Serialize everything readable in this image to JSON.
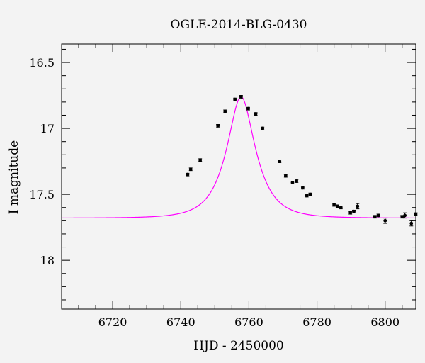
{
  "chart_data": {
    "type": "scatter",
    "title": "OGLE-2014-BLG-0430",
    "xlabel": "HJD - 2450000",
    "ylabel": "I magnitude",
    "xlim": [
      6705,
      6809
    ],
    "ylim": [
      18.37,
      16.36
    ],
    "y_inverted": true,
    "x_ticks": [
      6720,
      6740,
      6760,
      6780,
      6800
    ],
    "y_ticks": [
      16.5,
      17,
      17.5,
      18
    ],
    "y_tick_labels": [
      "16.5",
      "17",
      "17.5",
      "18"
    ],
    "grid": false,
    "colors": {
      "points": "#000000",
      "model": "#ff00ff",
      "background": "#f3f3f3"
    },
    "model": {
      "name": "",
      "t0": 6757.7,
      "peak_mag": 16.76,
      "baseline_mag": 17.68,
      "tE": 7.5
    },
    "series": [
      {
        "name": "",
        "points": [
          {
            "x": 6742.0,
            "y": 17.35,
            "err": 0.01
          },
          {
            "x": 6742.9,
            "y": 17.31,
            "err": 0.01
          },
          {
            "x": 6745.7,
            "y": 17.24,
            "err": 0.01
          },
          {
            "x": 6750.9,
            "y": 16.98,
            "err": 0.01
          },
          {
            "x": 6753.0,
            "y": 16.87,
            "err": 0.01
          },
          {
            "x": 6755.9,
            "y": 16.78,
            "err": 0.01
          },
          {
            "x": 6757.7,
            "y": 16.76,
            "err": 0.01
          },
          {
            "x": 6759.8,
            "y": 16.85,
            "err": 0.01
          },
          {
            "x": 6762.0,
            "y": 16.89,
            "err": 0.01
          },
          {
            "x": 6764.0,
            "y": 17.0,
            "err": 0.01
          },
          {
            "x": 6769.0,
            "y": 17.25,
            "err": 0.01
          },
          {
            "x": 6770.8,
            "y": 17.36,
            "err": 0.01
          },
          {
            "x": 6772.8,
            "y": 17.41,
            "err": 0.01
          },
          {
            "x": 6774.0,
            "y": 17.4,
            "err": 0.01
          },
          {
            "x": 6775.8,
            "y": 17.45,
            "err": 0.01
          },
          {
            "x": 6777.0,
            "y": 17.51,
            "err": 0.01
          },
          {
            "x": 6778.0,
            "y": 17.5,
            "err": 0.01
          },
          {
            "x": 6785.0,
            "y": 17.58,
            "err": 0.01
          },
          {
            "x": 6786.0,
            "y": 17.59,
            "err": 0.01
          },
          {
            "x": 6787.0,
            "y": 17.6,
            "err": 0.01
          },
          {
            "x": 6789.8,
            "y": 17.64,
            "err": 0.01
          },
          {
            "x": 6790.8,
            "y": 17.63,
            "err": 0.01
          },
          {
            "x": 6791.9,
            "y": 17.59,
            "err": 0.02
          },
          {
            "x": 6797.0,
            "y": 17.67,
            "err": 0.01
          },
          {
            "x": 6798.0,
            "y": 17.66,
            "err": 0.01
          },
          {
            "x": 6800.0,
            "y": 17.7,
            "err": 0.02
          },
          {
            "x": 6805.0,
            "y": 17.67,
            "err": 0.01
          },
          {
            "x": 6805.8,
            "y": 17.66,
            "err": 0.02
          },
          {
            "x": 6807.7,
            "y": 17.72,
            "err": 0.02
          },
          {
            "x": 6809.0,
            "y": 17.65,
            "err": 0.01
          }
        ]
      }
    ]
  }
}
